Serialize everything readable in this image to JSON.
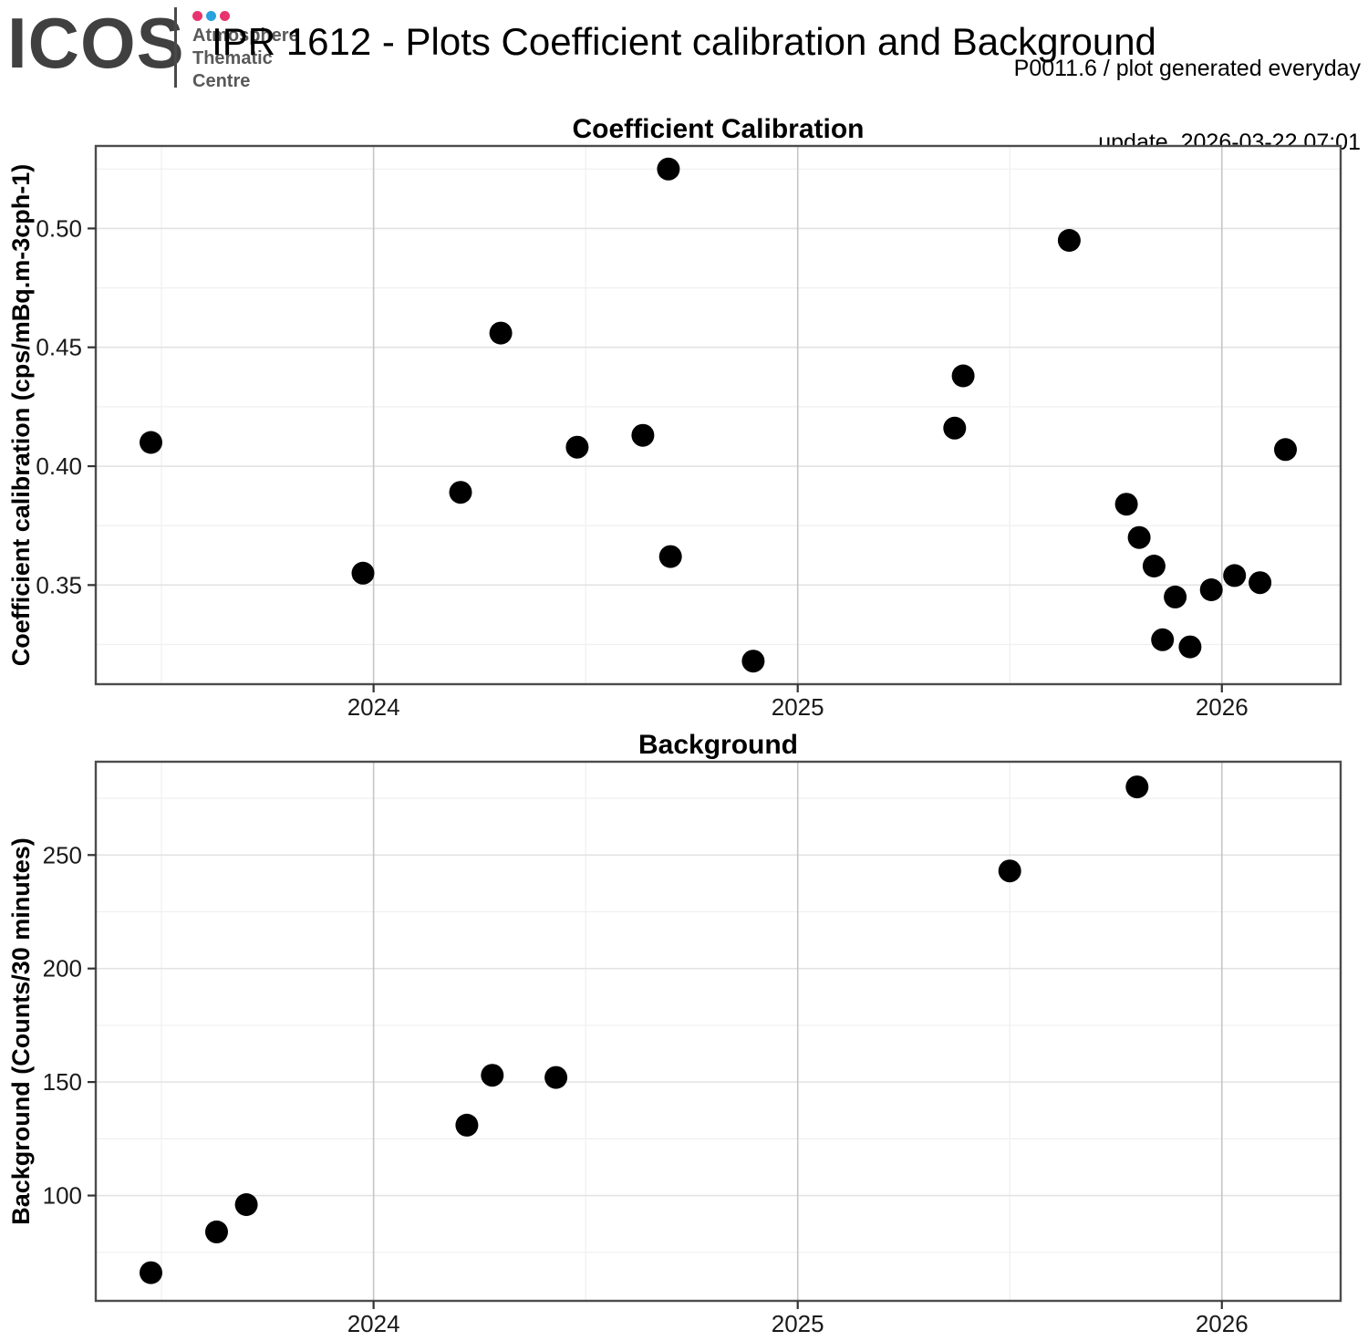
{
  "header": {
    "logo_text": "ICOS",
    "logo_subtitle_lines": [
      "Atmosphere",
      "Thematic",
      "Centre"
    ],
    "logo_dot_colors": [
      "#e8336d",
      "#29a0e0",
      "#e8336d"
    ],
    "title": "IPR 1612 - Plots Coefficient calibration and Background",
    "update_line1": "P0011.6 / plot generated everyday",
    "update_line2": "update  2026-03-22 07:01"
  },
  "colors": {
    "point": "#000000",
    "panel_border": "#4c4c4c",
    "grid_major_y": "#e3e3e3",
    "grid_major_x": "#c6c6c6",
    "grid_minor": "#f0f0f0",
    "tick_mark": "#333333",
    "tick_label": "#1a1a1a"
  },
  "chart_data": [
    {
      "type": "scatter",
      "title": "Coefficient Calibration",
      "xlabel": "",
      "ylabel": "Coefficient calibration (cps/mBq.m-3cph-1)",
      "x_domain": [
        2023.345,
        2026.28
      ],
      "y_domain": [
        0.3083,
        0.5347
      ],
      "x_ticks": [
        {
          "value": 2024,
          "label": "2024"
        },
        {
          "value": 2025,
          "label": "2025"
        },
        {
          "value": 2026,
          "label": "2026"
        }
      ],
      "y_ticks": [
        {
          "value": 0.35,
          "label": "0.35"
        },
        {
          "value": 0.4,
          "label": "0.40"
        },
        {
          "value": 0.45,
          "label": "0.45"
        },
        {
          "value": 0.5,
          "label": "0.50"
        }
      ],
      "x_minor": [
        2023.5,
        2024.5,
        2025.5
      ],
      "y_minor": [
        0.325,
        0.375,
        0.425,
        0.475,
        0.525
      ],
      "grid": true,
      "legend": "none",
      "points": [
        [
          2023.475,
          0.41
        ],
        [
          2023.975,
          0.355
        ],
        [
          2024.205,
          0.389
        ],
        [
          2024.3,
          0.456
        ],
        [
          2024.48,
          0.408
        ],
        [
          2024.635,
          0.413
        ],
        [
          2024.695,
          0.525
        ],
        [
          2024.7,
          0.362
        ],
        [
          2024.895,
          0.318
        ],
        [
          2025.37,
          0.416
        ],
        [
          2025.39,
          0.438
        ],
        [
          2025.64,
          0.495
        ],
        [
          2025.775,
          0.384
        ],
        [
          2025.805,
          0.37
        ],
        [
          2025.84,
          0.358
        ],
        [
          2025.86,
          0.327
        ],
        [
          2025.89,
          0.345
        ],
        [
          2025.925,
          0.324
        ],
        [
          2025.975,
          0.348
        ],
        [
          2026.03,
          0.354
        ],
        [
          2026.09,
          0.351
        ],
        [
          2026.15,
          0.407
        ]
      ]
    },
    {
      "type": "scatter",
      "title": "Background",
      "xlabel": "",
      "ylabel": "Background (Counts/30 minutes)",
      "x_domain": [
        2023.345,
        2026.28
      ],
      "y_domain": [
        53.6,
        291.1
      ],
      "x_ticks": [
        {
          "value": 2024,
          "label": "2024"
        },
        {
          "value": 2025,
          "label": "2025"
        },
        {
          "value": 2026,
          "label": "2026"
        }
      ],
      "y_ticks": [
        {
          "value": 100,
          "label": "100"
        },
        {
          "value": 150,
          "label": "150"
        },
        {
          "value": 200,
          "label": "200"
        },
        {
          "value": 250,
          "label": "250"
        }
      ],
      "x_minor": [
        2023.5,
        2024.5,
        2025.5
      ],
      "y_minor": [
        75,
        125,
        175,
        225,
        275
      ],
      "grid": true,
      "legend": "none",
      "points": [
        [
          2023.475,
          66
        ],
        [
          2023.63,
          84
        ],
        [
          2023.7,
          96
        ],
        [
          2024.22,
          131
        ],
        [
          2024.28,
          153
        ],
        [
          2024.43,
          152
        ],
        [
          2025.5,
          243
        ],
        [
          2025.8,
          280
        ]
      ]
    }
  ]
}
